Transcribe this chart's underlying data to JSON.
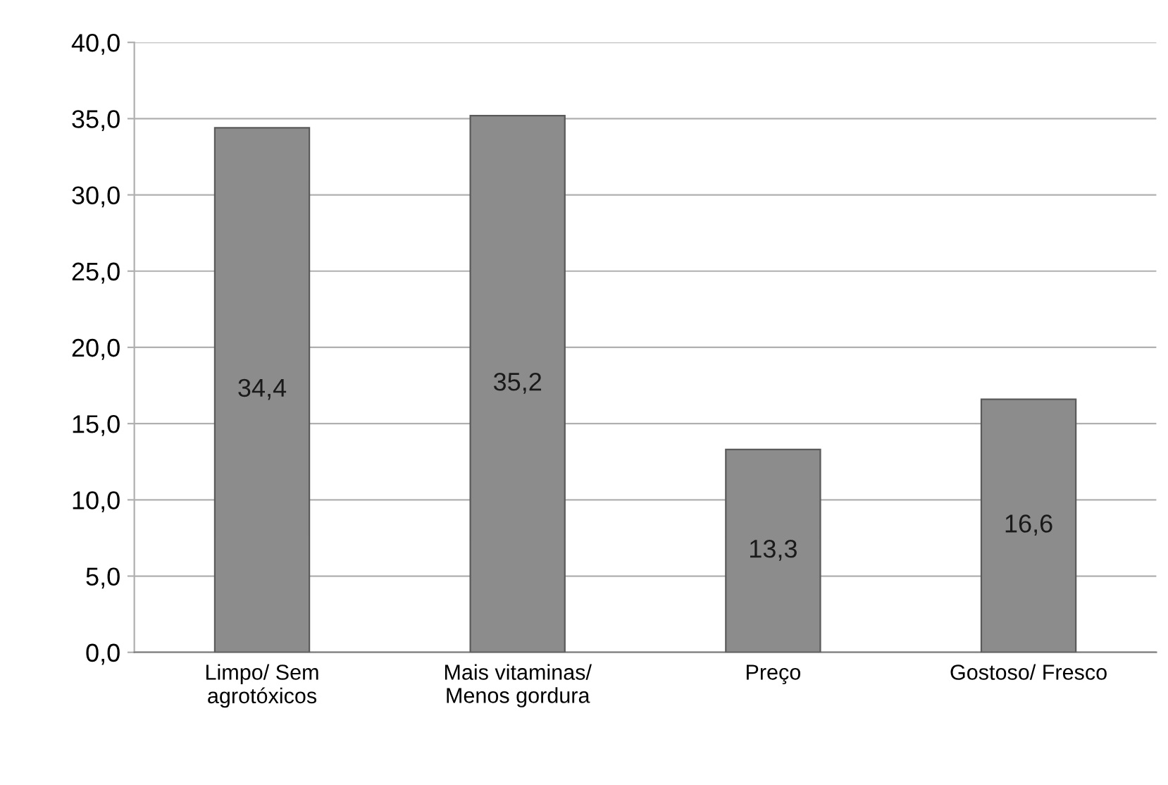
{
  "chart_data": {
    "type": "bar",
    "categories": [
      "Limpo/ Sem\nagrotóxicos",
      "Mais vitaminas/\nMenos gordura",
      "Preço",
      "Gostoso/ Fresco"
    ],
    "values": [
      34.4,
      35.2,
      13.3,
      16.6
    ],
    "value_labels": [
      "34,4",
      "35,2",
      "13,3",
      "16,6"
    ],
    "color": "#8c8c8c",
    "ylim": [
      0,
      40
    ],
    "yticks": [
      {
        "value": 0,
        "label": "0,0"
      },
      {
        "value": 5,
        "label": "5,0"
      },
      {
        "value": 10,
        "label": "10,0"
      },
      {
        "value": 15,
        "label": "15,0"
      },
      {
        "value": 20,
        "label": "20,0"
      },
      {
        "value": 25,
        "label": "25,0"
      },
      {
        "value": 30,
        "label": "30,0"
      },
      {
        "value": 35,
        "label": "35,0"
      },
      {
        "value": 40,
        "label": "40,0"
      }
    ],
    "grid": "y"
  }
}
